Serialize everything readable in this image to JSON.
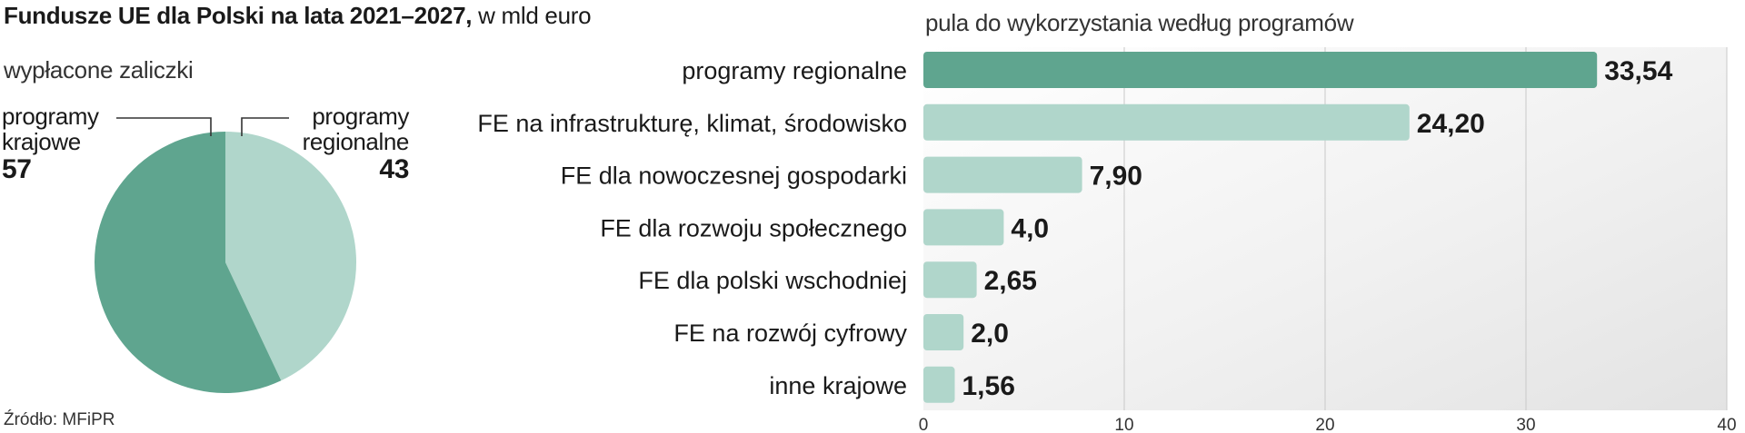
{
  "header": {
    "title": "Fundusze UE dla Polski na lata 2021–2027,",
    "title_unit": "w mld euro"
  },
  "pie": {
    "subtitle": "wypłacone zaliczki",
    "slices": [
      {
        "label_line1": "programy",
        "label_line2": "krajowe",
        "value": 57,
        "value_text": "57",
        "color": "#5fa58f"
      },
      {
        "label_line1": "programy",
        "label_line2": "regionalne",
        "value": 43,
        "value_text": "43",
        "color": "#b0d6cb"
      }
    ]
  },
  "bars": {
    "subtitle": "pula do wykorzystania według programów"
  },
  "chart_data": [
    {
      "type": "pie",
      "title": "wypłacone zaliczki",
      "labels": [
        "programy krajowe",
        "programy regionalne"
      ],
      "values": [
        57,
        43
      ],
      "colors": [
        "#5fa58f",
        "#b0d6cb"
      ]
    },
    {
      "type": "bar",
      "orientation": "horizontal",
      "title": "pula do wykorzystania według programów",
      "categories": [
        "programy regionalne",
        "FE na infrastrukturę, klimat, środowisko",
        "FE dla nowoczesnej gospodarki",
        "FE dla rozwoju społecznego",
        "FE dla polski wschodniej",
        "FE na rozwój cyfrowy",
        "inne  krajowe"
      ],
      "values": [
        33.54,
        24.2,
        7.9,
        4.0,
        2.65,
        2.0,
        1.56
      ],
      "value_labels": [
        "33,54",
        "24,20",
        "7,90",
        "4,0",
        "2,65",
        "2,0",
        "1,56"
      ],
      "highlight_color": "#5fa58f",
      "bar_color": "#b0d6cb",
      "xlim": [
        0,
        40
      ],
      "xticks": [
        0,
        10,
        20,
        30,
        40
      ],
      "xtick_labels": [
        "0",
        "10",
        "20",
        "30",
        "40"
      ],
      "grid": true,
      "background": "gradient-grey"
    }
  ],
  "source": "Źródło: MFiPR"
}
